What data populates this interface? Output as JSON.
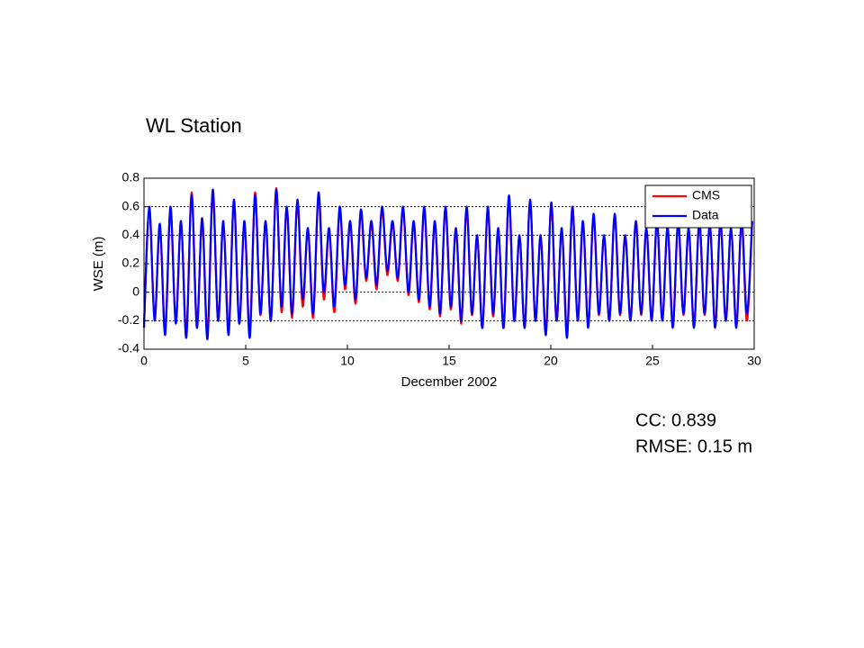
{
  "chart_data": {
    "type": "line",
    "title": "WL Station",
    "xlabel": "December 2002",
    "ylabel": "WSE (m)",
    "annotations": [
      "CC: 0.839",
      "RMSE: 0.15 m"
    ],
    "x": [
      0,
      0.26,
      0.52,
      0.78,
      1.04,
      1.3,
      1.56,
      1.82,
      2.08,
      2.34,
      2.6,
      2.86,
      3.12,
      3.38,
      3.64,
      3.9,
      4.16,
      4.42,
      4.68,
      4.94,
      5.2,
      5.46,
      5.72,
      5.98,
      6.24,
      6.5,
      6.76,
      7.02,
      7.28,
      7.54,
      7.8,
      8.06,
      8.32,
      8.58,
      8.84,
      9.1,
      9.36,
      9.62,
      9.88,
      10.14,
      10.4,
      10.66,
      10.92,
      11.18,
      11.44,
      11.7,
      11.96,
      12.22,
      12.48,
      12.74,
      13,
      13.26,
      13.52,
      13.78,
      14.04,
      14.3,
      14.56,
      14.82,
      15.08,
      15.34,
      15.6,
      15.86,
      16.12,
      16.38,
      16.64,
      16.9,
      17.16,
      17.42,
      17.68,
      17.94,
      18.2,
      18.46,
      18.72,
      18.98,
      19.24,
      19.5,
      19.76,
      20.02,
      20.28,
      20.54,
      20.8,
      21.06,
      21.32,
      21.58,
      21.84,
      22.1,
      22.36,
      22.62,
      22.88,
      23.14,
      23.4,
      23.66,
      23.92,
      24.18,
      24.44,
      24.7,
      24.96,
      25.22,
      25.48,
      25.74,
      26,
      26.26,
      26.52,
      26.78,
      27.04,
      27.3,
      27.56,
      27.82,
      28.08,
      28.34,
      28.6,
      28.86,
      29.12,
      29.38,
      29.64,
      29.9
    ],
    "series": [
      {
        "name": "CMS",
        "color": "#ff0000",
        "values": [
          -0.22,
          0.58,
          -0.18,
          0.46,
          -0.26,
          0.58,
          -0.2,
          0.49,
          -0.28,
          0.7,
          -0.22,
          0.5,
          -0.28,
          0.7,
          -0.2,
          0.48,
          -0.26,
          0.63,
          -0.22,
          0.48,
          -0.27,
          0.7,
          -0.16,
          0.49,
          -0.2,
          0.73,
          -0.14,
          0.58,
          -0.18,
          0.63,
          -0.1,
          0.44,
          -0.18,
          0.68,
          -0.05,
          0.44,
          -0.14,
          0.58,
          0.02,
          0.48,
          -0.08,
          0.56,
          0.08,
          0.48,
          0.02,
          0.58,
          0.12,
          0.48,
          0.08,
          0.58,
          -0.02,
          0.48,
          -0.07,
          0.58,
          -0.12,
          0.48,
          -0.17,
          0.58,
          -0.12,
          0.44,
          -0.22,
          0.58,
          -0.16,
          0.39,
          -0.25,
          0.58,
          -0.17,
          0.44,
          -0.25,
          0.66,
          -0.2,
          0.39,
          -0.24,
          0.63,
          -0.2,
          0.39,
          -0.27,
          0.61,
          -0.2,
          0.44,
          -0.28,
          0.6,
          -0.2,
          0.48,
          -0.23,
          0.54,
          -0.16,
          0.39,
          -0.2,
          0.53,
          -0.16,
          0.39,
          -0.2,
          0.49,
          -0.16,
          0.44,
          -0.2,
          0.49,
          -0.19,
          0.46,
          -0.22,
          0.49,
          -0.16,
          0.44,
          -0.22,
          0.49,
          -0.16,
          0.47,
          -0.22,
          0.49,
          -0.2,
          0.44,
          -0.22,
          0.49,
          -0.2,
          0.49
        ]
      },
      {
        "name": "Data",
        "color": "#0000ff",
        "values": [
          -0.25,
          0.6,
          -0.2,
          0.48,
          -0.3,
          0.6,
          -0.22,
          0.5,
          -0.32,
          0.68,
          -0.25,
          0.52,
          -0.33,
          0.72,
          -0.2,
          0.5,
          -0.3,
          0.65,
          -0.22,
          0.5,
          -0.32,
          0.68,
          -0.15,
          0.5,
          -0.2,
          0.72,
          -0.1,
          0.6,
          -0.15,
          0.65,
          -0.05,
          0.45,
          -0.15,
          0.7,
          0,
          0.45,
          -0.1,
          0.6,
          0.05,
          0.5,
          -0.05,
          0.58,
          0.1,
          0.5,
          0.05,
          0.6,
          0.15,
          0.5,
          0.1,
          0.6,
          0,
          0.5,
          -0.05,
          0.6,
          -0.1,
          0.5,
          -0.15,
          0.6,
          -0.1,
          0.45,
          -0.2,
          0.6,
          -0.15,
          0.4,
          -0.25,
          0.6,
          -0.15,
          0.45,
          -0.25,
          0.68,
          -0.2,
          0.4,
          -0.25,
          0.65,
          -0.2,
          0.4,
          -0.3,
          0.63,
          -0.2,
          0.45,
          -0.32,
          0.6,
          -0.2,
          0.5,
          -0.25,
          0.55,
          -0.15,
          0.4,
          -0.2,
          0.55,
          -0.15,
          0.4,
          -0.2,
          0.5,
          -0.15,
          0.45,
          -0.2,
          0.5,
          -0.2,
          0.45,
          -0.25,
          0.5,
          -0.15,
          0.45,
          -0.25,
          0.5,
          -0.15,
          0.48,
          -0.25,
          0.5,
          -0.2,
          0.45,
          -0.25,
          0.5,
          -0.15,
          0.5
        ]
      }
    ],
    "xlim": [
      0,
      30
    ],
    "xticks": [
      0,
      5,
      10,
      15,
      20,
      25,
      30
    ],
    "ylim": [
      -0.4,
      0.8
    ],
    "yticks": [
      -0.4,
      -0.2,
      0,
      0.2,
      0.4,
      0.6,
      0.8
    ],
    "grid": "y",
    "legend": "northeast"
  }
}
